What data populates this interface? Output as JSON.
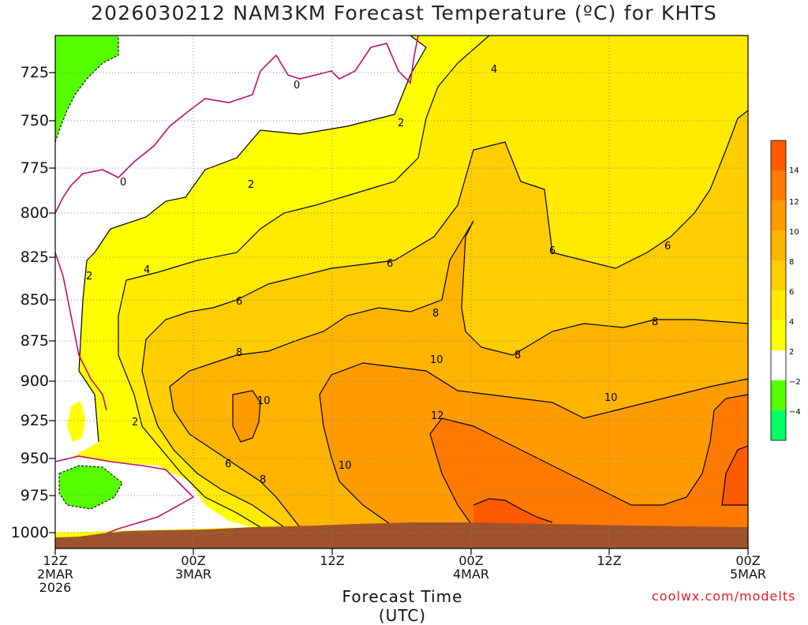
{
  "chart_data": {
    "type": "contour",
    "title": "2026030212 NAM3KM Forecast Temperature (ºC) for KHTS",
    "xlabel": "Forecast Time (UTC)",
    "ylabel": "",
    "credit": "coolwx.com/modelts",
    "yticks": [
      "725",
      "750",
      "775",
      "800",
      "825",
      "850",
      "875",
      "900",
      "925",
      "950",
      "975",
      "1000"
    ],
    "xticks": [
      {
        "line1": "12Z",
        "line2": "2MAR",
        "line3": "2026"
      },
      {
        "line1": "00Z",
        "line2": "3MAR",
        "line3": ""
      },
      {
        "line1": "12Z",
        "line2": "",
        "line3": ""
      },
      {
        "line1": "00Z",
        "line2": "4MAR",
        "line3": ""
      },
      {
        "line1": "12Z",
        "line2": "",
        "line3": ""
      },
      {
        "line1": "00Z",
        "line2": "5MAR",
        "line3": ""
      }
    ],
    "ylim": [
      1010,
      700
    ],
    "grid": true,
    "contour_labels": [
      "0",
      "0",
      "2",
      "2",
      "2",
      "2",
      "4",
      "4",
      "6",
      "6",
      "6",
      "6",
      "8",
      "8",
      "8",
      "8",
      "10",
      "10",
      "10",
      "10",
      "12"
    ],
    "colorbar": {
      "ticks": [
        "14",
        "12",
        "10",
        "8",
        "6",
        "4",
        "2",
        "−2",
        "−4"
      ],
      "colors": [
        "#ff5a00",
        "#ff7a00",
        "#ff9a00",
        "#ffb400",
        "#ffcd00",
        "#ffea00",
        "#ffff00",
        "#ffffff",
        "#55ff00",
        "#00ff66"
      ]
    }
  }
}
